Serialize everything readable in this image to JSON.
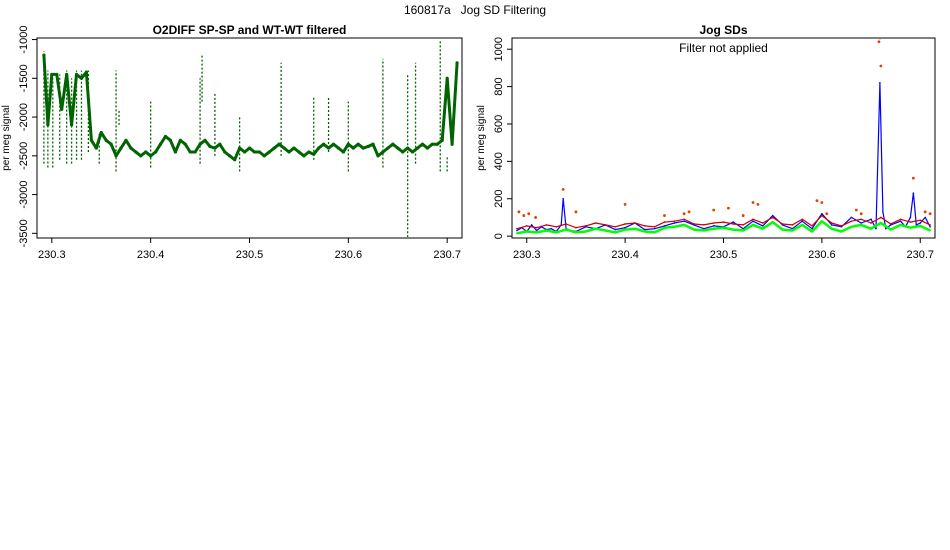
{
  "page": {
    "title": "160817a   Jog SD Filtering"
  },
  "colors": {
    "left_series": "#006400",
    "sd_blue": "#0000ff",
    "sd_green": "#00ff00",
    "sd_red": "#cc0000",
    "outlier_points": "#e04000"
  },
  "chart_data": [
    {
      "type": "scatter",
      "title": "O2DIFF SP-SP and WT-WT filtered",
      "xlabel": "",
      "ylabel": "per meg signal",
      "xlim": [
        230.285,
        230.715
      ],
      "ylim": [
        -3560,
        -980
      ],
      "y_reversed": true,
      "xticks": [
        230.3,
        230.4,
        230.5,
        230.6,
        230.7
      ],
      "xtick_labels": [
        "230.3",
        "230.4",
        "230.5",
        "230.6",
        "230.7"
      ],
      "yticks": [
        -1000,
        -1500,
        -2000,
        -2500,
        -3000,
        -3500
      ],
      "ytick_labels": [
        "-1000",
        "-1500",
        "-2000",
        "-2500",
        "-3000",
        "-3500"
      ],
      "grid": false,
      "series": [
        {
          "color": "#006400",
          "x": [
            230.292,
            230.296,
            230.3,
            230.305,
            230.31,
            230.315,
            230.32,
            230.325,
            230.33,
            230.335,
            230.34,
            230.345,
            230.35,
            230.355,
            230.36,
            230.365,
            230.37,
            230.375,
            230.38,
            230.385,
            230.39,
            230.395,
            230.4,
            230.405,
            230.41,
            230.415,
            230.42,
            230.425,
            230.43,
            230.435,
            230.44,
            230.445,
            230.45,
            230.455,
            230.46,
            230.465,
            230.47,
            230.475,
            230.48,
            230.485,
            230.49,
            230.495,
            230.5,
            230.505,
            230.51,
            230.515,
            230.52,
            230.525,
            230.53,
            230.535,
            230.54,
            230.545,
            230.55,
            230.555,
            230.56,
            230.565,
            230.57,
            230.575,
            230.58,
            230.585,
            230.59,
            230.595,
            230.6,
            230.605,
            230.61,
            230.615,
            230.62,
            230.625,
            230.63,
            230.635,
            230.64,
            230.645,
            230.65,
            230.655,
            230.66,
            230.665,
            230.67,
            230.675,
            230.68,
            230.685,
            230.69,
            230.695,
            230.7,
            230.705,
            230.71
          ],
          "y": [
            -1200,
            -2100,
            -1450,
            -1450,
            -1900,
            -1450,
            -2100,
            -1450,
            -1500,
            -1420,
            -2300,
            -2400,
            -2200,
            -2300,
            -2350,
            -2500,
            -2400,
            -2300,
            -2400,
            -2450,
            -2500,
            -2450,
            -2500,
            -2450,
            -2350,
            -2250,
            -2300,
            -2450,
            -2300,
            -2350,
            -2450,
            -2450,
            -2350,
            -2300,
            -2380,
            -2400,
            -2350,
            -2450,
            -2500,
            -2550,
            -2400,
            -2450,
            -2400,
            -2450,
            -2450,
            -2500,
            -2450,
            -2400,
            -2350,
            -2400,
            -2450,
            -2400,
            -2450,
            -2500,
            -2450,
            -2480,
            -2400,
            -2350,
            -2400,
            -2350,
            -2400,
            -2450,
            -2350,
            -2400,
            -2350,
            -2400,
            -2380,
            -2350,
            -2500,
            -2450,
            -2400,
            -2350,
            -2400,
            -2450,
            -2400,
            -2450,
            -2400,
            -2350,
            -2400,
            -2350,
            -2350,
            -2300,
            -1500,
            -2350,
            -1300
          ],
          "spikes": [
            {
              "x": 230.292,
              "from": -2600,
              "to": -1150
            },
            {
              "x": 230.296,
              "from": -2650,
              "to": -1400
            },
            {
              "x": 230.301,
              "from": -2650,
              "to": -1500
            },
            {
              "x": 230.308,
              "from": -2550,
              "to": -1450
            },
            {
              "x": 230.315,
              "from": -2600,
              "to": -1400
            },
            {
              "x": 230.32,
              "from": -2600,
              "to": -1500
            },
            {
              "x": 230.325,
              "from": -2550,
              "to": -1400
            },
            {
              "x": 230.33,
              "from": -2550,
              "to": -1400
            },
            {
              "x": 230.337,
              "from": -2450,
              "to": -1400
            },
            {
              "x": 230.348,
              "from": -2600,
              "to": -2200
            },
            {
              "x": 230.365,
              "from": -2700,
              "to": -1400
            },
            {
              "x": 230.368,
              "from": -2100,
              "to": -1900
            },
            {
              "x": 230.4,
              "from": -2650,
              "to": -1800
            },
            {
              "x": 230.45,
              "from": -2600,
              "to": -1500
            },
            {
              "x": 230.452,
              "from": -1800,
              "to": -1180
            },
            {
              "x": 230.465,
              "from": -2500,
              "to": -1700
            },
            {
              "x": 230.49,
              "from": -2700,
              "to": -2000
            },
            {
              "x": 230.532,
              "from": -2500,
              "to": -1300
            },
            {
              "x": 230.565,
              "from": -2550,
              "to": -1750
            },
            {
              "x": 230.58,
              "from": -2450,
              "to": -1750
            },
            {
              "x": 230.6,
              "from": -2700,
              "to": -1800
            },
            {
              "x": 230.635,
              "from": -2650,
              "to": -1250
            },
            {
              "x": 230.66,
              "from": -3550,
              "to": -1450
            },
            {
              "x": 230.668,
              "from": -2600,
              "to": -1300
            },
            {
              "x": 230.693,
              "from": -2700,
              "to": -1000
            },
            {
              "x": 230.7,
              "from": -2700,
              "to": -2500
            }
          ]
        }
      ]
    },
    {
      "type": "line",
      "title": "Jog SDs",
      "annotation": "Filter not applied",
      "xlabel": "",
      "ylabel": "per meg signal",
      "xlim": [
        230.285,
        230.715
      ],
      "ylim": [
        -10,
        1060
      ],
      "xticks": [
        230.3,
        230.4,
        230.5,
        230.6,
        230.7
      ],
      "xtick_labels": [
        "230.3",
        "230.4",
        "230.5",
        "230.6",
        "230.7"
      ],
      "yticks": [
        0,
        200,
        400,
        600,
        800,
        1000
      ],
      "ytick_labels": [
        "0",
        "200",
        "400",
        "600",
        "800",
        "1000"
      ],
      "grid": false,
      "series": [
        {
          "color": "#0000ff",
          "x": [
            230.29,
            230.295,
            230.3,
            230.305,
            230.31,
            230.315,
            230.32,
            230.325,
            230.33,
            230.335,
            230.337,
            230.34,
            230.345,
            230.35,
            230.36,
            230.37,
            230.38,
            230.39,
            230.4,
            230.41,
            230.42,
            230.43,
            230.44,
            230.45,
            230.46,
            230.47,
            230.48,
            230.49,
            230.5,
            230.51,
            230.52,
            230.53,
            230.54,
            230.55,
            230.56,
            230.57,
            230.58,
            230.59,
            230.6,
            230.61,
            230.62,
            230.63,
            230.64,
            230.65,
            230.655,
            230.659,
            230.662,
            230.665,
            230.67,
            230.68,
            230.685,
            230.69,
            230.693,
            230.696,
            230.7,
            230.705,
            230.71
          ],
          "y": [
            30,
            45,
            25,
            60,
            30,
            50,
            35,
            40,
            25,
            60,
            200,
            40,
            30,
            25,
            50,
            40,
            60,
            35,
            45,
            70,
            35,
            40,
            55,
            70,
            80,
            60,
            40,
            55,
            50,
            75,
            40,
            80,
            55,
            110,
            60,
            40,
            80,
            40,
            120,
            60,
            50,
            100,
            70,
            90,
            40,
            820,
            130,
            40,
            60,
            80,
            50,
            100,
            230,
            60,
            70,
            100,
            50
          ]
        },
        {
          "color": "#00ff00",
          "x": [
            230.29,
            230.3,
            230.31,
            230.32,
            230.33,
            230.34,
            230.35,
            230.36,
            230.37,
            230.38,
            230.39,
            230.4,
            230.41,
            230.42,
            230.43,
            230.44,
            230.45,
            230.46,
            230.47,
            230.48,
            230.49,
            230.5,
            230.51,
            230.52,
            230.53,
            230.54,
            230.55,
            230.56,
            230.57,
            230.58,
            230.59,
            230.6,
            230.61,
            230.62,
            230.63,
            230.64,
            230.65,
            230.66,
            230.67,
            230.68,
            230.69,
            230.7,
            230.71
          ],
          "y": [
            15,
            25,
            20,
            30,
            20,
            35,
            20,
            25,
            40,
            30,
            20,
            35,
            40,
            25,
            20,
            45,
            50,
            60,
            35,
            30,
            40,
            45,
            35,
            30,
            60,
            40,
            75,
            35,
            30,
            60,
            25,
            80,
            40,
            25,
            50,
            60,
            40,
            70,
            35,
            60,
            45,
            55,
            30
          ]
        },
        {
          "color": "#cc0000",
          "x": [
            230.29,
            230.3,
            230.31,
            230.32,
            230.33,
            230.34,
            230.35,
            230.36,
            230.37,
            230.38,
            230.39,
            230.4,
            230.41,
            230.42,
            230.43,
            230.44,
            230.45,
            230.46,
            230.47,
            230.48,
            230.49,
            230.5,
            230.51,
            230.52,
            230.53,
            230.54,
            230.55,
            230.56,
            230.57,
            230.58,
            230.59,
            230.6,
            230.61,
            230.62,
            230.63,
            230.64,
            230.65,
            230.66,
            230.67,
            230.68,
            230.69,
            230.7,
            230.71
          ],
          "y": [
            40,
            55,
            45,
            60,
            50,
            65,
            45,
            55,
            70,
            60,
            50,
            65,
            70,
            55,
            50,
            75,
            80,
            90,
            65,
            60,
            70,
            75,
            65,
            60,
            90,
            70,
            100,
            65,
            60,
            90,
            55,
            110,
            70,
            55,
            80,
            90,
            70,
            100,
            65,
            90,
            75,
            85,
            60
          ]
        },
        {
          "color": "#e04000",
          "kind": "points",
          "x": [
            230.292,
            230.297,
            230.302,
            230.309,
            230.337,
            230.35,
            230.4,
            230.44,
            230.46,
            230.465,
            230.49,
            230.505,
            230.52,
            230.53,
            230.535,
            230.595,
            230.6,
            230.605,
            230.635,
            230.64,
            230.658,
            230.659,
            230.66,
            230.693,
            230.705,
            230.71
          ],
          "y": [
            130,
            110,
            120,
            100,
            250,
            130,
            170,
            110,
            120,
            130,
            140,
            150,
            110,
            180,
            170,
            190,
            180,
            120,
            140,
            120,
            1040,
            1060,
            910,
            310,
            130,
            120
          ]
        }
      ]
    }
  ]
}
